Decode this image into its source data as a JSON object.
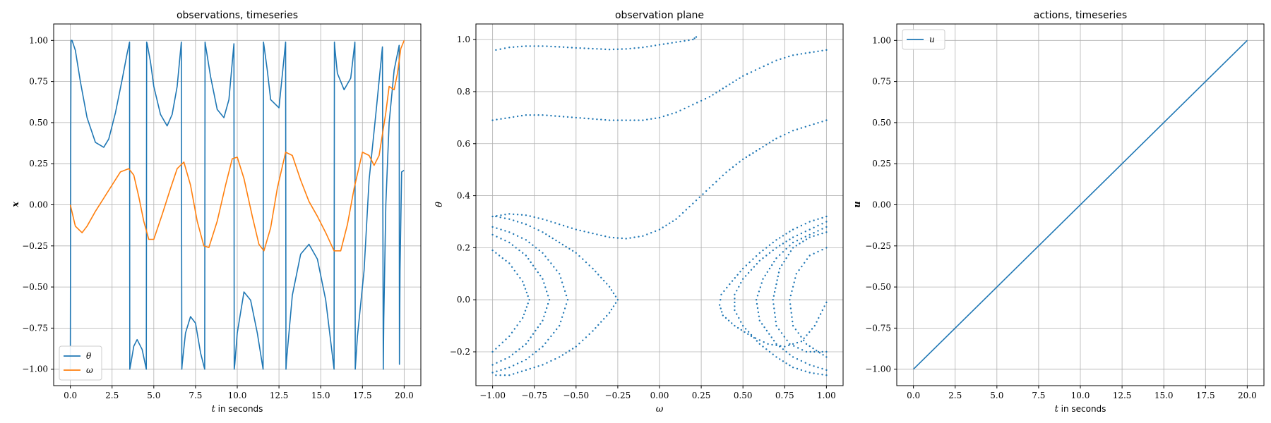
{
  "colors": {
    "theta": "#1f77b4",
    "omega": "#ff7f0e",
    "u": "#1f77b4"
  },
  "chart_data": [
    {
      "type": "line",
      "title": "observations, timeseries",
      "xlabel_var": "t",
      "xlabel_rest": " in seconds",
      "ylabel": "x",
      "xlim": [
        -1,
        21
      ],
      "ylim": [
        -1.1,
        1.1
      ],
      "xticks": [
        0,
        2.5,
        5,
        7.5,
        10,
        12.5,
        15,
        17.5,
        20
      ],
      "xtick_labels": [
        "0.0",
        "2.5",
        "5.0",
        "7.5",
        "10.0",
        "12.5",
        "15.0",
        "17.5",
        "20.0"
      ],
      "yticks": [
        -1,
        -0.75,
        -0.5,
        -0.25,
        0,
        0.25,
        0.5,
        0.75,
        1
      ],
      "ytick_labels": [
        "−1.00",
        "−0.75",
        "−0.50",
        "−0.25",
        "0.00",
        "0.25",
        "0.50",
        "0.75",
        "1.00"
      ],
      "legend": {
        "position": "lower-left",
        "entries": [
          "θ",
          "ω"
        ]
      },
      "series": [
        {
          "name": "θ",
          "color_key": "theta",
          "x": [
            0,
            0.02,
            0.04,
            0.1,
            0.3,
            0.6,
            1.0,
            1.5,
            2.0,
            2.3,
            2.7,
            3.1,
            3.4,
            3.55,
            3.56,
            3.6,
            3.8,
            4.0,
            4.3,
            4.55,
            4.57,
            4.6,
            4.8,
            5.0,
            5.4,
            5.8,
            6.1,
            6.4,
            6.65,
            6.68,
            6.7,
            6.9,
            7.2,
            7.5,
            7.8,
            8.05,
            8.07,
            8.1,
            8.4,
            8.8,
            9.2,
            9.5,
            9.8,
            9.82,
            9.85,
            10.0,
            10.4,
            10.8,
            11.2,
            11.55,
            11.57,
            11.6,
            11.8,
            12.0,
            12.5,
            12.9,
            12.92,
            12.95,
            13.3,
            13.8,
            14.3,
            14.8,
            15.3,
            15.8,
            15.82,
            15.85,
            16.0,
            16.4,
            16.8,
            17.05,
            17.07,
            17.2,
            17.6,
            17.9,
            18.3,
            18.7,
            18.75,
            18.78,
            18.9,
            19.1,
            19.4,
            19.7,
            19.72,
            19.75,
            19.85,
            20.0
          ],
          "y": [
            -1,
            0.3,
            1.0,
            1.0,
            0.94,
            0.75,
            0.53,
            0.38,
            0.35,
            0.4,
            0.56,
            0.76,
            0.92,
            0.99,
            -1,
            -0.98,
            -0.86,
            -0.82,
            -0.88,
            -1,
            0.99,
            0.98,
            0.87,
            0.72,
            0.55,
            0.48,
            0.55,
            0.72,
            0.99,
            -1,
            -0.97,
            -0.78,
            -0.68,
            -0.72,
            -0.9,
            -1,
            0.99,
            0.97,
            0.78,
            0.58,
            0.53,
            0.64,
            0.98,
            -1,
            -0.97,
            -0.78,
            -0.53,
            -0.58,
            -0.78,
            -1,
            0.99,
            0.97,
            0.82,
            0.64,
            0.59,
            0.99,
            -1,
            -0.95,
            -0.55,
            -0.3,
            -0.24,
            -0.33,
            -0.58,
            -1,
            0.99,
            0.95,
            0.8,
            0.7,
            0.77,
            0.99,
            -1,
            -0.8,
            -0.4,
            0.15,
            0.55,
            0.96,
            -1,
            -0.7,
            0.0,
            0.5,
            0.82,
            0.97,
            -0.97,
            -0.4,
            0.2,
            0.21
          ]
        },
        {
          "name": "ω",
          "color_key": "omega",
          "x": [
            0,
            0.3,
            0.7,
            1.0,
            1.5,
            2.0,
            2.5,
            3.0,
            3.5,
            3.8,
            4.1,
            4.4,
            4.7,
            5.0,
            5.5,
            6.0,
            6.4,
            6.8,
            7.2,
            7.6,
            8.0,
            8.3,
            8.8,
            9.3,
            9.7,
            10.0,
            10.4,
            10.9,
            11.3,
            11.6,
            12.0,
            12.4,
            12.9,
            13.3,
            13.8,
            14.3,
            14.8,
            15.3,
            15.8,
            16.2,
            16.6,
            17.0,
            17.5,
            17.9,
            18.2,
            18.5,
            18.9,
            19.1,
            19.4,
            19.6,
            19.8,
            20.0
          ],
          "y": [
            0,
            -0.13,
            -0.17,
            -0.13,
            -0.04,
            0.04,
            0.12,
            0.2,
            0.22,
            0.18,
            0.05,
            -0.1,
            -0.21,
            -0.21,
            -0.06,
            0.1,
            0.22,
            0.26,
            0.12,
            -0.1,
            -0.25,
            -0.26,
            -0.1,
            0.12,
            0.28,
            0.29,
            0.16,
            -0.07,
            -0.24,
            -0.28,
            -0.14,
            0.1,
            0.32,
            0.3,
            0.15,
            0.02,
            -0.07,
            -0.17,
            -0.28,
            -0.28,
            -0.12,
            0.1,
            0.32,
            0.3,
            0.24,
            0.3,
            0.56,
            0.72,
            0.7,
            0.8,
            0.95,
            1.0
          ]
        }
      ]
    },
    {
      "type": "scatter",
      "title": "observation plane",
      "xlabel_var": "ω",
      "xlabel_rest": "",
      "ylabel": "θ",
      "xlim": [
        -1.1,
        1.1
      ],
      "ylim": [
        -0.33,
        1.06
      ],
      "xticks": [
        -1,
        -0.75,
        -0.5,
        -0.25,
        0,
        0.25,
        0.5,
        0.75,
        1
      ],
      "xtick_labels": [
        "−1.00",
        "−0.75",
        "−0.50",
        "−0.25",
        "0.00",
        "0.25",
        "0.50",
        "0.75",
        "1.00"
      ],
      "yticks": [
        -0.2,
        0,
        0.2,
        0.4,
        0.6,
        0.8,
        1.0
      ],
      "ytick_labels": [
        "−0.2",
        "0.0",
        "0.2",
        "0.4",
        "0.6",
        "0.8",
        "1.0"
      ],
      "curves": [
        {
          "x": [
            -0.98,
            -0.9,
            -0.8,
            -0.7,
            -0.6,
            -0.5,
            -0.4,
            -0.3,
            -0.2,
            -0.1,
            0.0,
            0.1,
            0.2,
            0.22
          ],
          "y": [
            0.96,
            0.97,
            0.975,
            0.975,
            0.972,
            0.968,
            0.965,
            0.962,
            0.964,
            0.97,
            0.98,
            0.99,
            1.0,
            1.01
          ]
        },
        {
          "x": [
            -1.0,
            -0.9,
            -0.8,
            -0.7,
            -0.6,
            -0.5,
            -0.4,
            -0.3,
            -0.2,
            -0.1,
            0.0,
            0.1,
            0.2,
            0.3,
            0.4,
            0.5,
            0.6,
            0.7,
            0.8,
            0.9,
            1.0
          ],
          "y": [
            0.69,
            0.7,
            0.71,
            0.71,
            0.705,
            0.7,
            0.695,
            0.69,
            0.69,
            0.69,
            0.7,
            0.72,
            0.75,
            0.78,
            0.82,
            0.86,
            0.89,
            0.92,
            0.94,
            0.95,
            0.96
          ]
        },
        {
          "x": [
            -1.0,
            -0.9,
            -0.8,
            -0.7,
            -0.6,
            -0.5,
            -0.4,
            -0.3,
            -0.2,
            -0.1,
            0.0,
            0.1,
            0.2,
            0.3,
            0.4,
            0.5,
            0.6,
            0.7,
            0.8,
            0.9,
            1.0
          ],
          "y": [
            0.32,
            0.33,
            0.325,
            0.31,
            0.29,
            0.27,
            0.255,
            0.24,
            0.235,
            0.245,
            0.27,
            0.31,
            0.37,
            0.43,
            0.49,
            0.54,
            0.58,
            0.62,
            0.65,
            0.67,
            0.69
          ]
        },
        {
          "x": [
            -0.98,
            -0.9,
            -0.8,
            -0.7,
            -0.6,
            -0.5,
            -0.4,
            -0.3,
            -0.25,
            -0.3,
            -0.4,
            -0.5,
            -0.6,
            -0.7,
            -0.8,
            -0.9,
            -0.98
          ],
          "y": [
            0.32,
            0.31,
            0.29,
            0.26,
            0.22,
            0.18,
            0.12,
            0.05,
            0.0,
            -0.05,
            -0.12,
            -0.18,
            -0.22,
            -0.25,
            -0.27,
            -0.29,
            -0.29
          ]
        },
        {
          "x": [
            -1.0,
            -0.9,
            -0.8,
            -0.7,
            -0.6,
            -0.55,
            -0.6,
            -0.7,
            -0.8,
            -0.9,
            -1.0
          ],
          "y": [
            0.28,
            0.26,
            0.23,
            0.18,
            0.1,
            0.0,
            -0.1,
            -0.18,
            -0.23,
            -0.26,
            -0.28
          ]
        },
        {
          "x": [
            -1.0,
            -0.9,
            -0.8,
            -0.7,
            -0.66,
            -0.7,
            -0.8,
            -0.9,
            -1.0
          ],
          "y": [
            0.25,
            0.22,
            0.17,
            0.08,
            0.0,
            -0.08,
            -0.17,
            -0.22,
            -0.25
          ]
        },
        {
          "x": [
            -1.0,
            -0.9,
            -0.82,
            -0.78,
            -0.82,
            -0.9,
            -1.0
          ],
          "y": [
            0.19,
            0.14,
            0.07,
            0.0,
            -0.07,
            -0.14,
            -0.2
          ]
        },
        {
          "x": [
            1.0,
            0.9,
            0.8,
            0.7,
            0.6,
            0.5,
            0.42,
            0.37,
            0.36,
            0.38,
            0.45,
            0.55,
            0.65,
            0.75,
            0.85,
            0.93,
            1.0
          ],
          "y": [
            0.32,
            0.3,
            0.27,
            0.23,
            0.18,
            0.12,
            0.06,
            0.02,
            -0.02,
            -0.06,
            -0.1,
            -0.14,
            -0.17,
            -0.18,
            -0.16,
            -0.1,
            -0.01
          ]
        },
        {
          "x": [
            1.0,
            0.9,
            0.8,
            0.7,
            0.6,
            0.5,
            0.45,
            0.45,
            0.5,
            0.6,
            0.7,
            0.8,
            0.9,
            1.0
          ],
          "y": [
            0.3,
            0.27,
            0.24,
            0.2,
            0.15,
            0.08,
            0.02,
            -0.04,
            -0.1,
            -0.17,
            -0.22,
            -0.26,
            -0.28,
            -0.29
          ]
        },
        {
          "x": [
            1.0,
            0.9,
            0.8,
            0.7,
            0.62,
            0.58,
            0.6,
            0.7,
            0.8,
            0.9,
            1.0
          ],
          "y": [
            0.28,
            0.25,
            0.22,
            0.16,
            0.08,
            0.0,
            -0.08,
            -0.17,
            -0.22,
            -0.25,
            -0.27
          ]
        },
        {
          "x": [
            1.0,
            0.9,
            0.8,
            0.72,
            0.68,
            0.7,
            0.78,
            0.88,
            1.0
          ],
          "y": [
            0.26,
            0.24,
            0.2,
            0.12,
            0.0,
            -0.1,
            -0.17,
            -0.2,
            -0.2
          ]
        },
        {
          "x": [
            1.0,
            0.9,
            0.82,
            0.78,
            0.8,
            0.88,
            1.0
          ],
          "y": [
            0.2,
            0.17,
            0.1,
            0.0,
            -0.1,
            -0.17,
            -0.22
          ]
        }
      ]
    },
    {
      "type": "line",
      "title": "actions, timeseries",
      "xlabel_var": "t",
      "xlabel_rest": " in seconds",
      "ylabel": "u",
      "xlim": [
        -1,
        21
      ],
      "ylim": [
        -1.1,
        1.1
      ],
      "xticks": [
        0,
        2.5,
        5,
        7.5,
        10,
        12.5,
        15,
        17.5,
        20
      ],
      "xtick_labels": [
        "0.0",
        "2.5",
        "5.0",
        "7.5",
        "10.0",
        "12.5",
        "15.0",
        "17.5",
        "20.0"
      ],
      "yticks": [
        -1,
        -0.75,
        -0.5,
        -0.25,
        0,
        0.25,
        0.5,
        0.75,
        1
      ],
      "ytick_labels": [
        "−1.00",
        "−0.75",
        "−0.50",
        "−0.25",
        "0.00",
        "0.25",
        "0.50",
        "0.75",
        "1.00"
      ],
      "legend": {
        "position": "upper-left",
        "entries": [
          "u"
        ]
      },
      "series": [
        {
          "name": "u",
          "color_key": "u",
          "x": [
            0,
            20
          ],
          "y": [
            -1,
            1
          ]
        }
      ]
    }
  ]
}
